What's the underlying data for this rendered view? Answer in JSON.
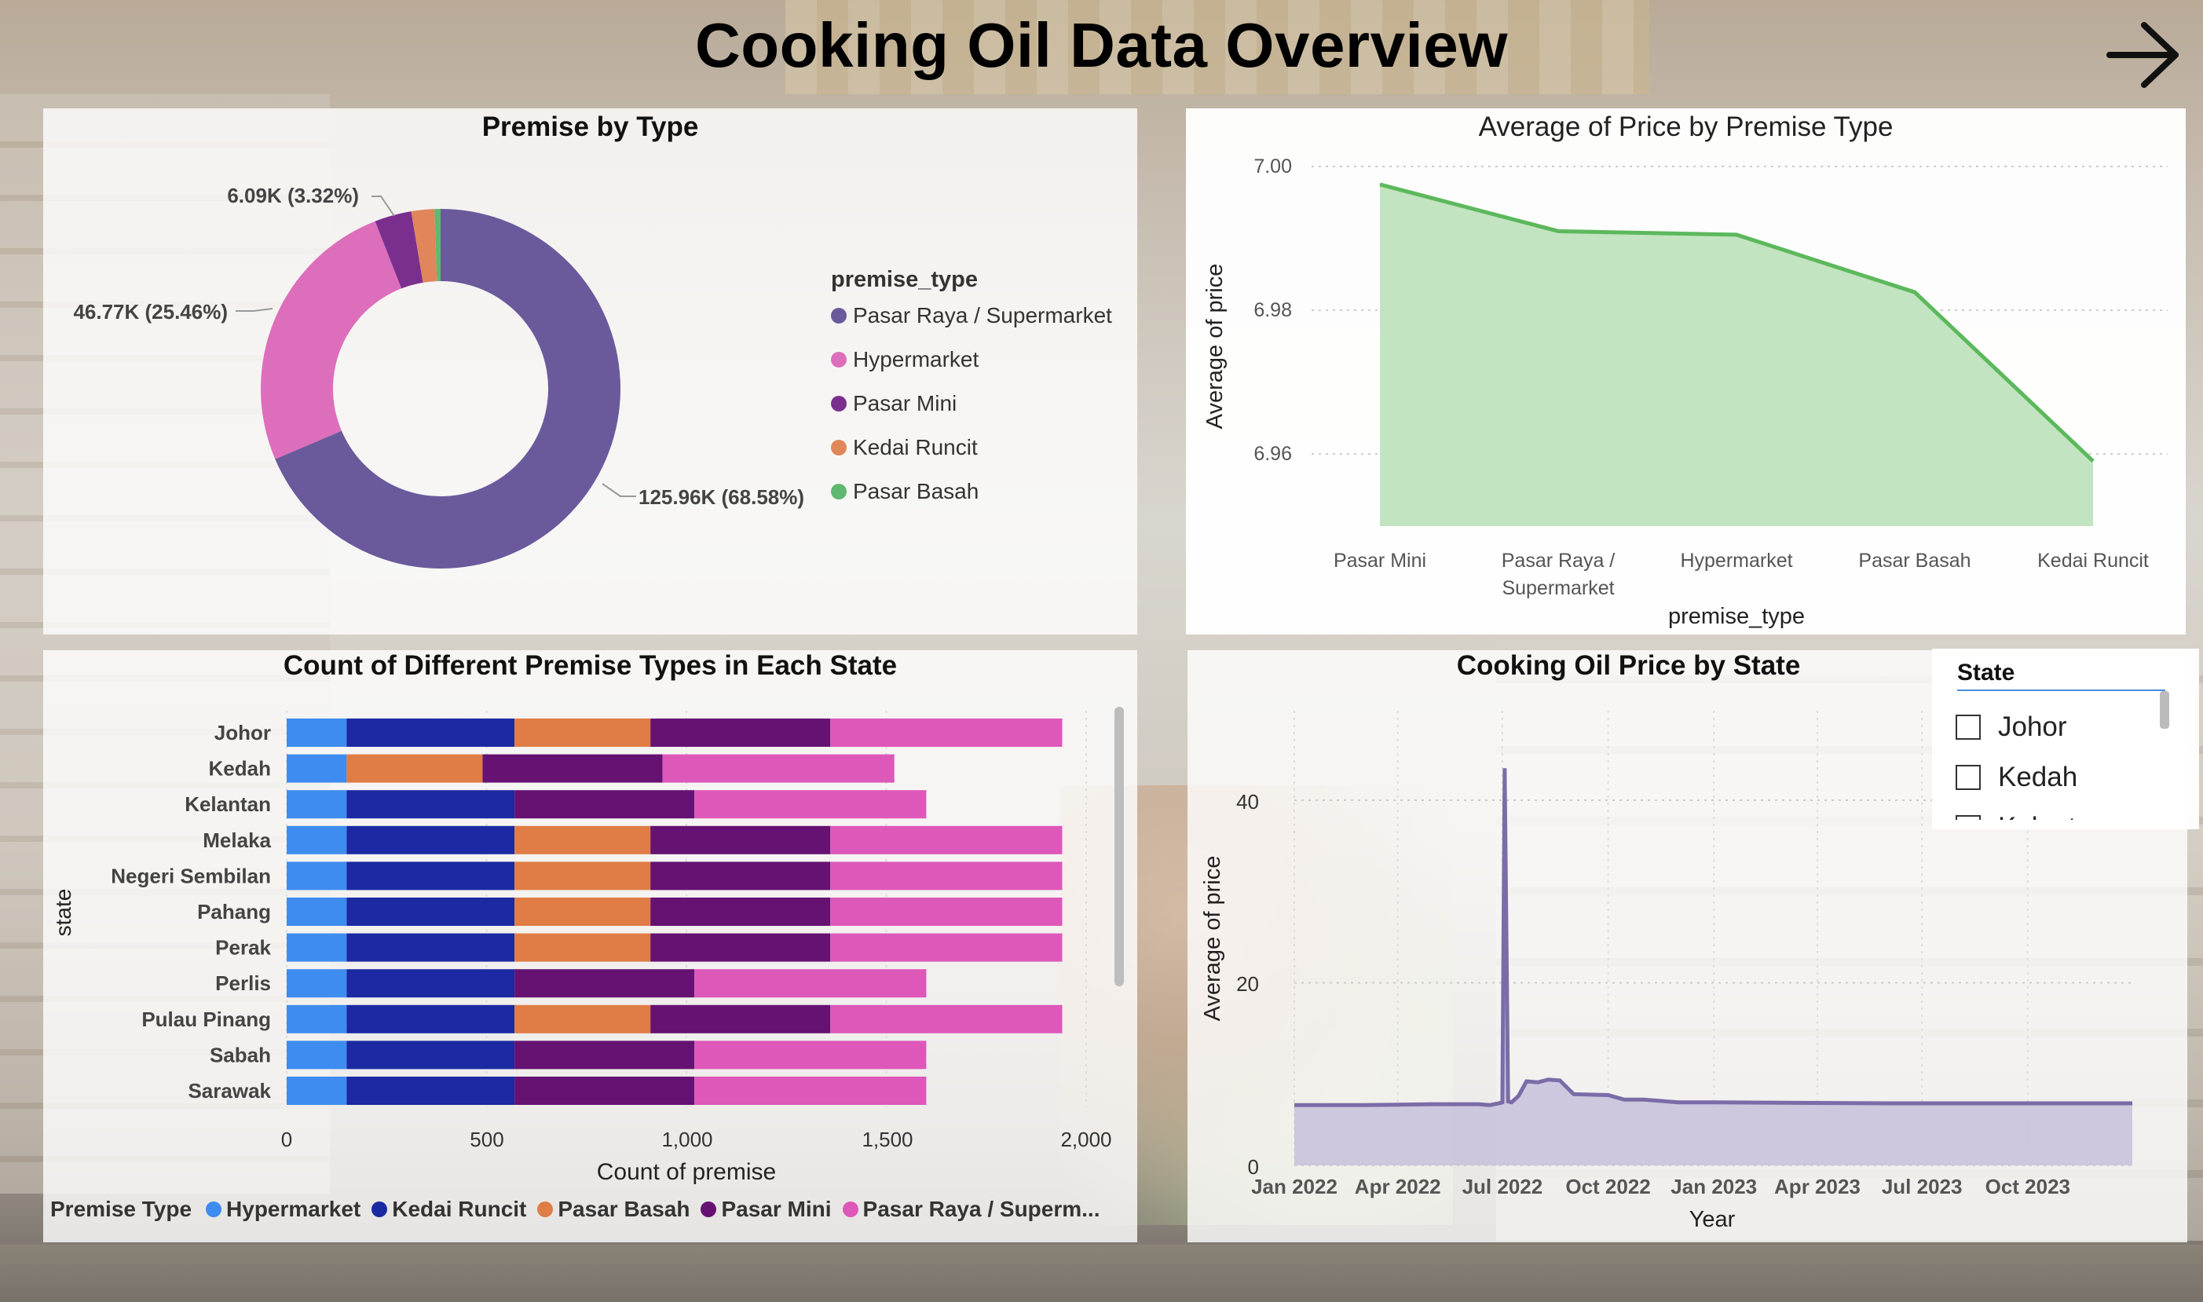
{
  "page": {
    "title": "Cooking Oil Data Overview",
    "nav_icon": "arrow-right-icon"
  },
  "donut": {
    "title": "Premise by Type",
    "legend_title": "premise_type",
    "legend": [
      {
        "label": "Pasar Raya / Supermarket",
        "color": "#6a5a9c"
      },
      {
        "label": "Hypermarket",
        "color": "#dd6ebc"
      },
      {
        "label": "Pasar Mini",
        "color": "#7a2f8f"
      },
      {
        "label": "Kedai Runcit",
        "color": "#e0865a"
      },
      {
        "label": "Pasar Basah",
        "color": "#5fb870"
      }
    ],
    "labels": {
      "supermarket": "125.96K (68.58%)",
      "hypermarket": "46.77K (25.46%)",
      "pasar_mini": "6.09K (3.32%)"
    }
  },
  "area": {
    "title": "Average of Price by Premise Type",
    "ylabel": "Average of price",
    "xlabel": "premise_type",
    "yticks": [
      "7.00",
      "6.98",
      "6.96"
    ]
  },
  "bars": {
    "title": "Count of Different Premise Types in Each State",
    "ylabel": "state",
    "xlabel": "Count of premise",
    "xticks": [
      "0",
      "500",
      "1,000",
      "1,500",
      "2,000"
    ],
    "legend_label": "Premise Type",
    "legend": [
      {
        "label": "Hypermarket",
        "color": "#3e8cf0"
      },
      {
        "label": "Kedai Runcit",
        "color": "#1b2aa2"
      },
      {
        "label": "Pasar Basah",
        "color": "#e07c45"
      },
      {
        "label": "Pasar Mini",
        "color": "#651272"
      },
      {
        "label": "Pasar Raya / Superm...",
        "color": "#dd58b8"
      }
    ]
  },
  "line": {
    "title": "Cooking Oil Price by State",
    "ylabel": "Average of price",
    "xlabel": "Year",
    "yticks": [
      "40",
      "20",
      "0"
    ],
    "xticks": [
      "Jan 2022",
      "Apr 2022",
      "Jul 2022",
      "Oct 2022",
      "Jan 2023",
      "Apr 2023",
      "Jul 2023",
      "Oct 2023"
    ]
  },
  "slicer": {
    "title": "State",
    "items": [
      "Johor",
      "Kedah",
      "Kelantan"
    ]
  },
  "chart_data": [
    {
      "type": "pie",
      "title": "Premise by Type",
      "categories": [
        "Pasar Raya / Supermarket",
        "Hypermarket",
        "Pasar Mini",
        "Kedai Runcit",
        "Pasar Basah"
      ],
      "values": [
        125960,
        46770,
        6090,
        3800,
        1000
      ],
      "percent": [
        68.58,
        25.46,
        3.32,
        2.07,
        0.57
      ]
    },
    {
      "type": "area",
      "title": "Average of Price by Premise Type",
      "xlabel": "premise_type",
      "ylabel": "Average of price",
      "categories": [
        "Pasar Mini",
        "Pasar Raya / Supermarket",
        "Hypermarket",
        "Pasar Basah",
        "Kedai Runcit"
      ],
      "values": [
        6.9975,
        6.991,
        6.9905,
        6.9825,
        6.959
      ],
      "ylim": [
        6.95,
        7.0
      ],
      "color": "#5cb85c"
    },
    {
      "type": "bar",
      "title": "Count of Different Premise Types in Each State",
      "xlabel": "Count of premise",
      "ylabel": "state",
      "xlim": [
        0,
        2000
      ],
      "categories": [
        "Johor",
        "Kedah",
        "Kelantan",
        "Melaka",
        "Negeri Sembilan",
        "Pahang",
        "Perak",
        "Perlis",
        "Pulau Pinang",
        "Sabah",
        "Sarawak"
      ],
      "series": [
        {
          "name": "Hypermarket",
          "values": [
            150,
            150,
            150,
            150,
            150,
            150,
            150,
            150,
            150,
            150,
            150
          ]
        },
        {
          "name": "Kedai Runcit",
          "values": [
            420,
            0,
            420,
            420,
            420,
            420,
            420,
            420,
            420,
            420,
            420
          ]
        },
        {
          "name": "Pasar Basah",
          "values": [
            340,
            340,
            0,
            340,
            340,
            340,
            340,
            0,
            340,
            0,
            0
          ]
        },
        {
          "name": "Pasar Mini",
          "values": [
            450,
            450,
            450,
            450,
            450,
            450,
            450,
            450,
            450,
            450,
            450
          ]
        },
        {
          "name": "Pasar Raya / Supermarket",
          "values": [
            580,
            580,
            580,
            580,
            580,
            580,
            580,
            580,
            580,
            580,
            580
          ]
        }
      ]
    },
    {
      "type": "line",
      "title": "Cooking Oil Price by State",
      "xlabel": "Year",
      "ylabel": "Average of price",
      "ylim": [
        0,
        45
      ],
      "x": [
        "2022-01-01",
        "2022-03-01",
        "2022-05-01",
        "2022-06-10",
        "2022-06-20",
        "2022-06-28",
        "2022-07-01",
        "2022-07-03",
        "2022-07-06",
        "2022-07-09",
        "2022-07-15",
        "2022-07-22",
        "2022-08-01",
        "2022-08-10",
        "2022-08-20",
        "2022-09-01",
        "2022-10-01",
        "2022-10-15",
        "2022-11-01",
        "2022-12-01",
        "2023-01-01",
        "2023-06-01",
        "2023-12-31"
      ],
      "y": [
        6.6,
        6.6,
        6.7,
        6.7,
        6.6,
        6.8,
        6.9,
        43.5,
        7.0,
        6.9,
        7.6,
        9.2,
        9.1,
        9.4,
        9.3,
        7.8,
        7.7,
        7.2,
        7.2,
        6.9,
        6.9,
        6.8,
        6.8
      ],
      "color": "#7b6ca8"
    }
  ]
}
